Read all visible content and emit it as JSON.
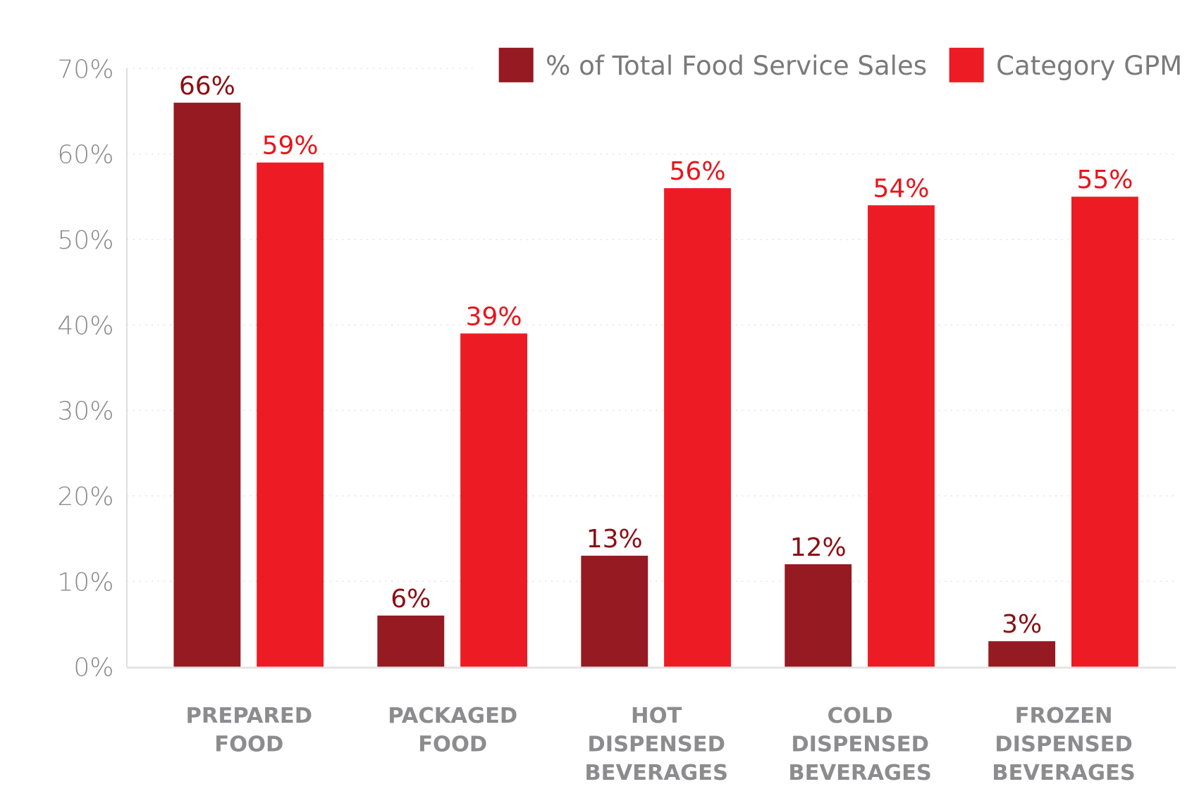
{
  "chart_data": {
    "type": "bar",
    "categories": [
      [
        "PREPARED",
        "FOOD"
      ],
      [
        "PACKAGED",
        "FOOD"
      ],
      [
        "HOT",
        "DISPENSED",
        "BEVERAGES"
      ],
      [
        "COLD",
        "DISPENSED",
        "BEVERAGES"
      ],
      [
        "FROZEN",
        "DISPENSED",
        "BEVERAGES"
      ]
    ],
    "series": [
      {
        "name": "% of Total Food Service Sales",
        "values": [
          66,
          6,
          13,
          12,
          3
        ],
        "labels": [
          "66%",
          "6%",
          "13%",
          "12%",
          "3%"
        ],
        "color": "#961a22",
        "label_color": "#8b0e14"
      },
      {
        "name": "Category GPM",
        "values": [
          59,
          39,
          56,
          54,
          55
        ],
        "labels": [
          "59%",
          "39%",
          "56%",
          "54%",
          "55%"
        ],
        "color": "#ed1c24",
        "label_color": "#e8141b"
      }
    ],
    "yticks": [
      "0%",
      "10%",
      "20%",
      "30%",
      "40%",
      "50%",
      "60%",
      "70%"
    ],
    "ylim": [
      0,
      70
    ],
    "grid": true,
    "legend": "top-right",
    "xlabel": "",
    "ylabel": "",
    "title": ""
  }
}
